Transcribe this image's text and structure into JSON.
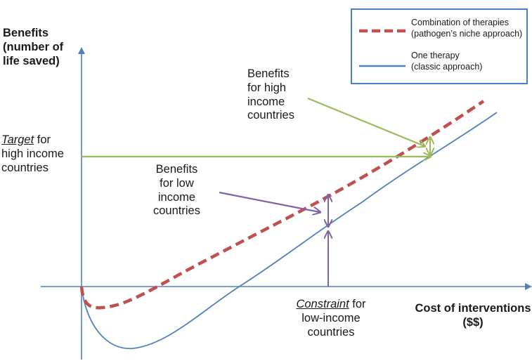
{
  "y_axis_label": [
    "Benefits",
    "(number of",
    "life saved)"
  ],
  "x_axis_label": [
    "Cost of interventions",
    "($$)"
  ],
  "target_label": {
    "emphasis": "Target",
    "rest_line1": " for",
    "line2": "high income",
    "line3": "countries"
  },
  "annotation_high": [
    "Benefits",
    "for high",
    "income",
    "countries"
  ],
  "annotation_low": [
    "Benefits",
    "for low",
    "income",
    "countries"
  ],
  "constraint_label": {
    "emphasis": "Constraint",
    "rest_line1": " for",
    "line2": "low-income",
    "line3": "countries"
  },
  "legend": {
    "items": [
      {
        "lines": [
          "Combination of therapies",
          "(pathogen’s niche approach)"
        ],
        "style": "dashed",
        "color": "#c0504d"
      },
      {
        "lines": [
          "One therapy",
          "(classic approach)"
        ],
        "style": "solid",
        "color": "#4f81bd"
      }
    ]
  },
  "colors": {
    "axis": "#4f81bd",
    "combination_curve": "#c0504d",
    "single_curve": "#4f81bd",
    "target_arrows": "#9bbb59",
    "low_income_arrows": "#8064a2",
    "constraint_arrow": "#8064a2"
  }
}
